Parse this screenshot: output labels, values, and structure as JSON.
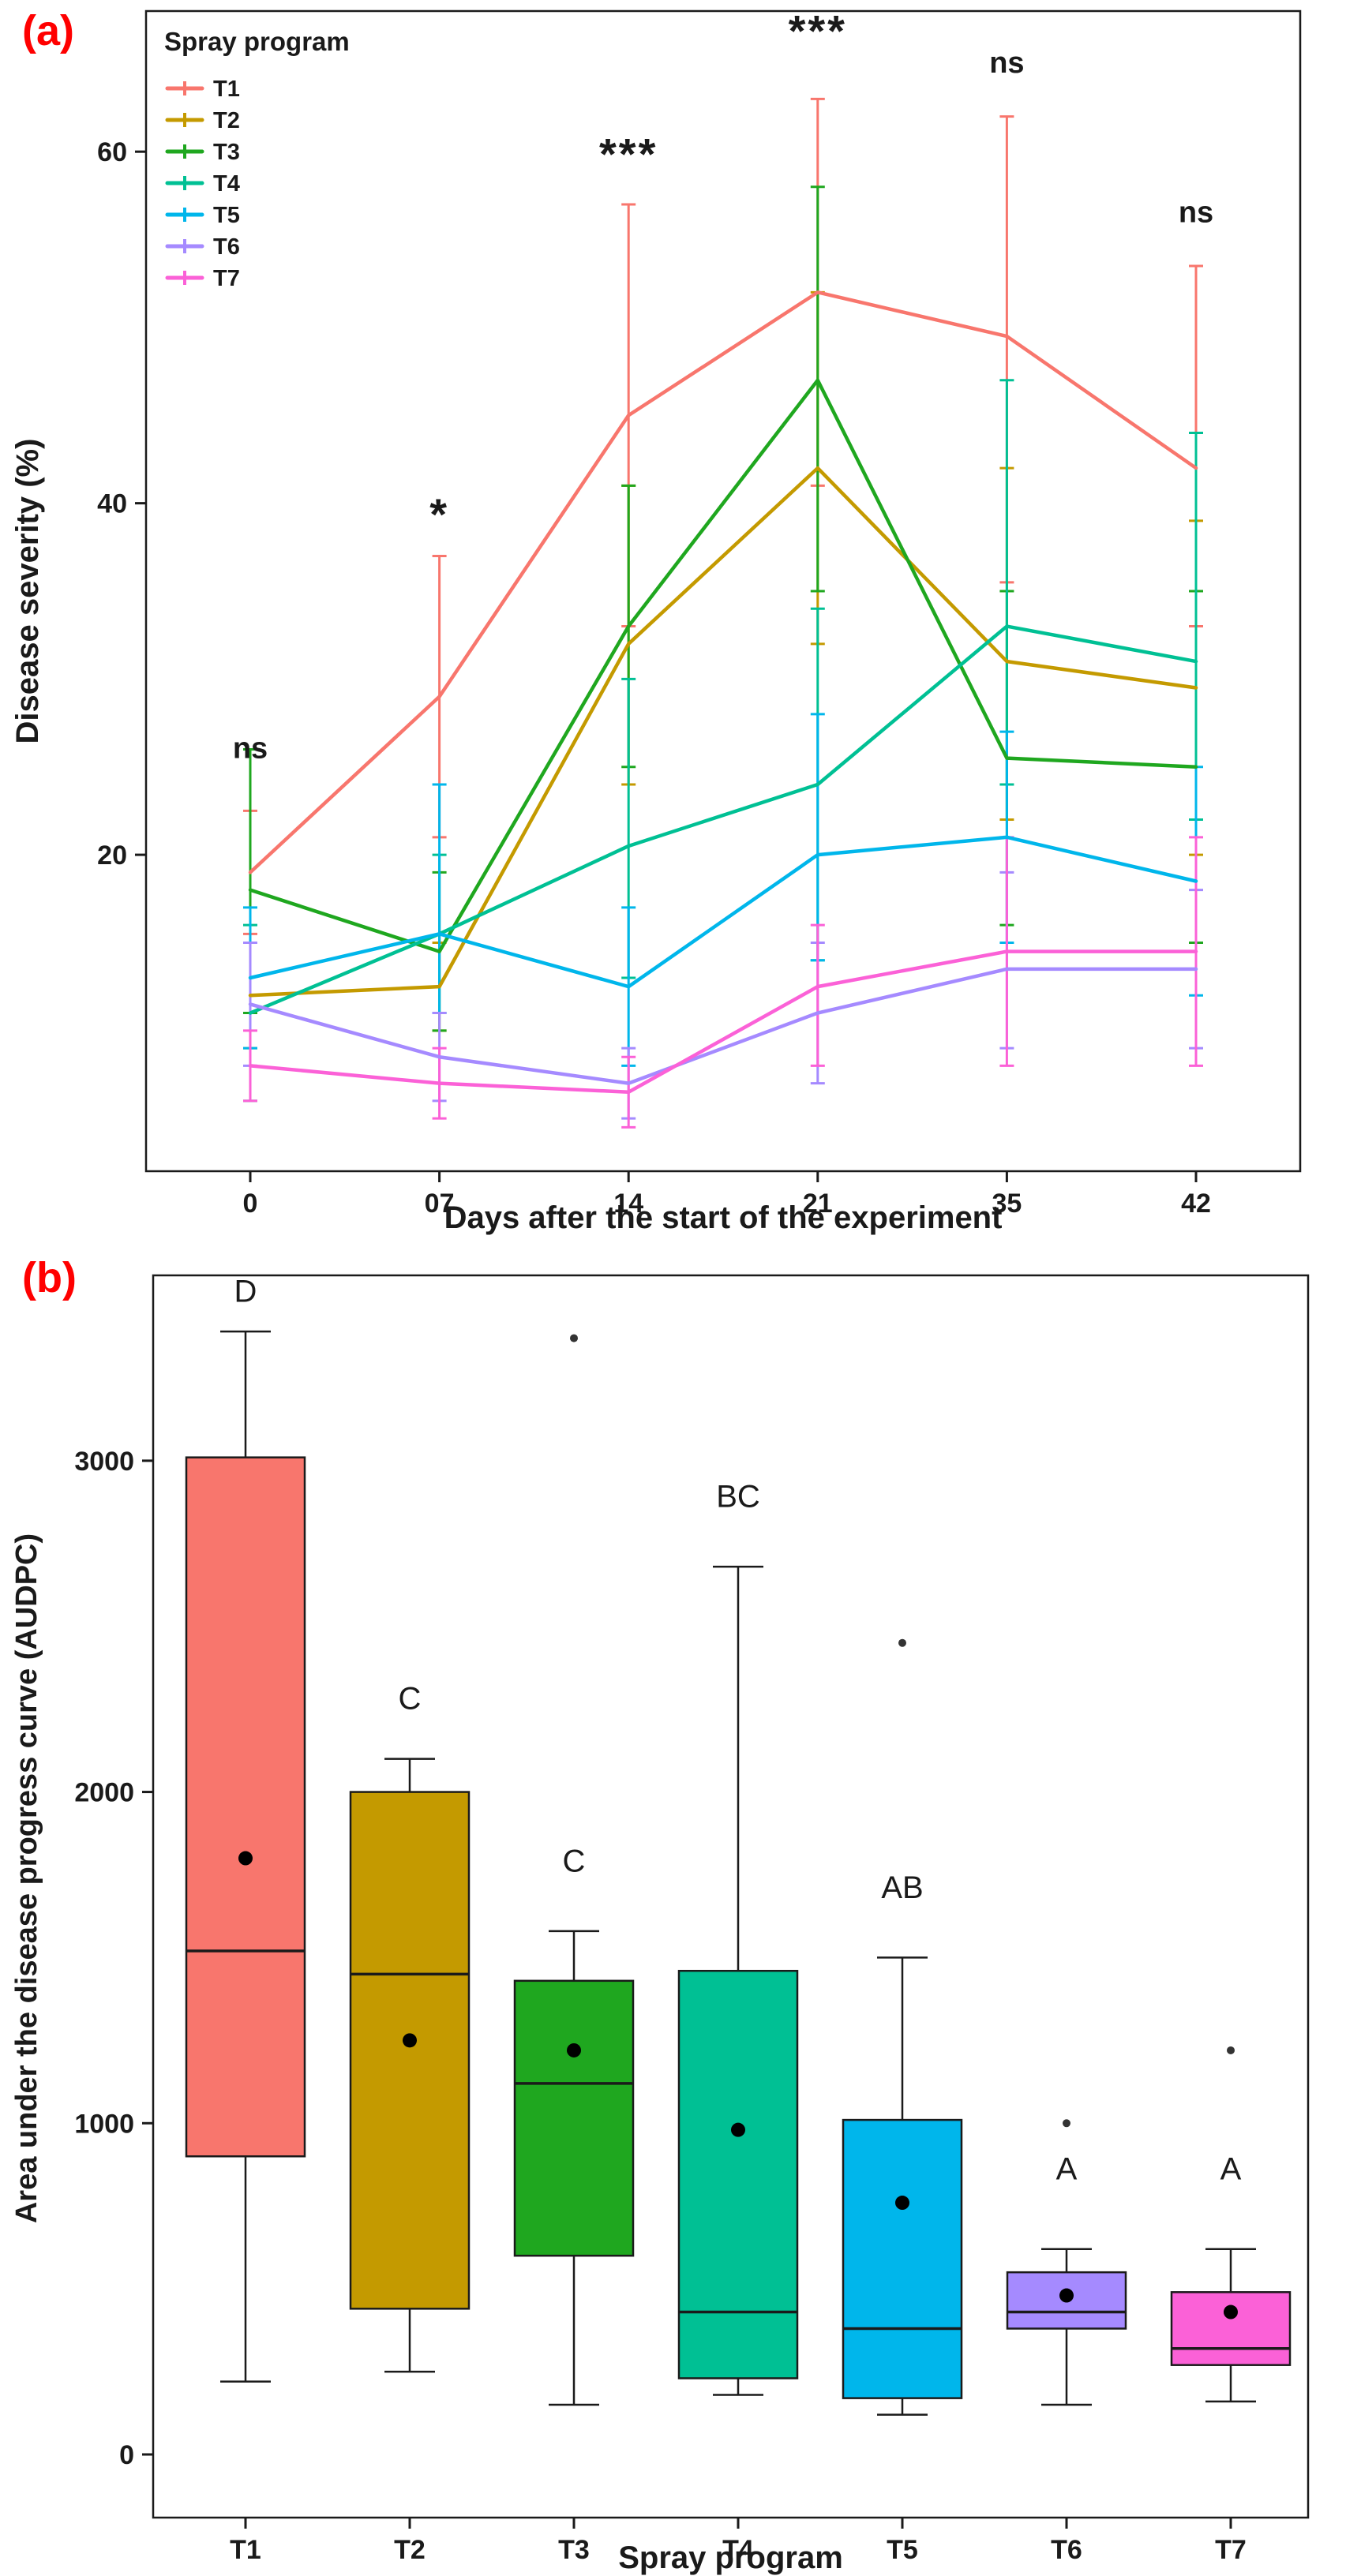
{
  "accent_color": "#ff0000",
  "chart_data": [
    {
      "id": "a",
      "type": "line",
      "panel_label": "(a)",
      "xlabel": "Days after the start of the experiment",
      "ylabel": "Disease severity (%)",
      "legend_title": "Spray program",
      "x_ticklabels": [
        "0",
        "07",
        "14",
        "21",
        "35",
        "42"
      ],
      "yticks": [
        20,
        40,
        60
      ],
      "ylim": [
        2,
        68
      ],
      "grid": false,
      "legend_position": "top-left-inside",
      "series": [
        {
          "name": "T1",
          "color": "#F8766D",
          "values": [
            19,
            29,
            45,
            52,
            49.5,
            42
          ],
          "lo": [
            15.5,
            21,
            33,
            41,
            35.5,
            33
          ],
          "hi": [
            22.5,
            37,
            57,
            63,
            62,
            53.5
          ]
        },
        {
          "name": "T2",
          "color": "#C49A00",
          "values": [
            12,
            12.5,
            32,
            42,
            31,
            29.5
          ],
          "lo": [
            9,
            10,
            24,
            32,
            22,
            20
          ],
          "hi": [
            15,
            15,
            41,
            52,
            42,
            39
          ]
        },
        {
          "name": "T3",
          "color": "#1FA71F",
          "values": [
            18,
            14.5,
            33,
            47,
            25.5,
            25
          ],
          "lo": [
            11,
            10,
            25,
            35,
            16,
            15
          ],
          "hi": [
            26,
            19,
            41,
            58,
            35,
            35
          ]
        },
        {
          "name": "T4",
          "color": "#00C094",
          "values": [
            11,
            15.5,
            20.5,
            24,
            33,
            31
          ],
          "lo": [
            6,
            11,
            13,
            14,
            24,
            22
          ],
          "hi": [
            16,
            20,
            30,
            34,
            47,
            44
          ]
        },
        {
          "name": "T5",
          "color": "#00B6EB",
          "values": [
            13,
            15.5,
            12.5,
            20,
            21,
            18.5
          ],
          "lo": [
            9,
            11,
            8,
            14,
            15,
            12
          ],
          "hi": [
            17,
            24,
            17,
            28,
            27,
            25
          ]
        },
        {
          "name": "T6",
          "color": "#A58AFF",
          "values": [
            11.5,
            8.5,
            7,
            11,
            13.5,
            13.5
          ],
          "lo": [
            8,
            6,
            5,
            7,
            9,
            9
          ],
          "hi": [
            15,
            11,
            9,
            15,
            19,
            18
          ]
        },
        {
          "name": "T7",
          "color": "#FB61D7",
          "values": [
            8,
            7,
            6.5,
            12.5,
            14.5,
            14.5
          ],
          "lo": [
            6,
            5,
            4.5,
            8,
            8,
            8
          ],
          "hi": [
            10,
            9,
            8.5,
            16,
            21,
            21
          ]
        }
      ],
      "significance": [
        {
          "x": 0,
          "label": "ns",
          "y": 25.5
        },
        {
          "x": 1,
          "label": "*",
          "y": 38.5
        },
        {
          "x": 2,
          "label": "***",
          "y": 59
        },
        {
          "x": 3,
          "label": "***",
          "y": 66
        },
        {
          "x": 4,
          "label": "ns",
          "y": 64.5
        },
        {
          "x": 5,
          "label": "ns",
          "y": 56
        }
      ]
    },
    {
      "id": "b",
      "type": "box",
      "panel_label": "(b)",
      "xlabel": "Spray program",
      "ylabel": "Area under the disease progress curve (AUDPC)",
      "yticks": [
        0,
        1000,
        2000,
        3000
      ],
      "ylim": [
        0,
        3500
      ],
      "grid": false,
      "boxes": [
        {
          "name": "T1",
          "color": "#F8766D",
          "whisker_low": 220,
          "q1": 900,
          "median": 1520,
          "q3": 3010,
          "whisker_high": 3390,
          "mean": 1800,
          "outliers": [],
          "letter": "D",
          "letter_y": 3480
        },
        {
          "name": "T2",
          "color": "#C49A00",
          "whisker_low": 250,
          "q1": 440,
          "median": 1450,
          "q3": 2000,
          "whisker_high": 2100,
          "mean": 1250,
          "outliers": [],
          "letter": "C",
          "letter_y": 2250
        },
        {
          "name": "T3",
          "color": "#1FA71F",
          "whisker_low": 150,
          "q1": 600,
          "median": 1120,
          "q3": 1430,
          "whisker_high": 1580,
          "mean": 1220,
          "outliers": [
            3370
          ],
          "letter": "C",
          "letter_y": 1760
        },
        {
          "name": "T4",
          "color": "#00C094",
          "whisker_low": 180,
          "q1": 230,
          "median": 430,
          "q3": 1460,
          "whisker_high": 2680,
          "mean": 980,
          "outliers": [],
          "letter": "BC",
          "letter_y": 2860
        },
        {
          "name": "T5",
          "color": "#00B6EB",
          "whisker_low": 120,
          "q1": 170,
          "median": 380,
          "q3": 1010,
          "whisker_high": 1500,
          "mean": 760,
          "outliers": [
            2450
          ],
          "letter": "AB",
          "letter_y": 1680
        },
        {
          "name": "T6",
          "color": "#A58AFF",
          "whisker_low": 150,
          "q1": 380,
          "median": 430,
          "q3": 550,
          "whisker_high": 620,
          "mean": 480,
          "outliers": [
            1000
          ],
          "letter": "A",
          "letter_y": 830
        },
        {
          "name": "T7",
          "color": "#FB61D7",
          "whisker_low": 160,
          "q1": 270,
          "median": 320,
          "q3": 490,
          "whisker_high": 620,
          "mean": 430,
          "outliers": [
            1220
          ],
          "letter": "A",
          "letter_y": 830
        }
      ]
    }
  ]
}
